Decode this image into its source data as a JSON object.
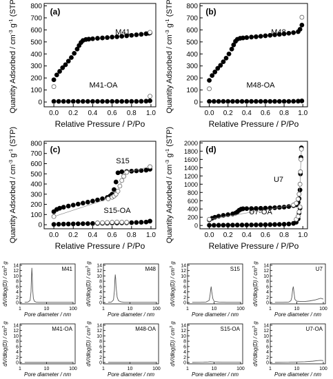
{
  "chart_data": [
    {
      "panel": "(a)",
      "type": "scatter",
      "xlabel": "Relative Pressure / P/Po",
      "ylabel": "Quantity Adsorbed / cm3 g-1 (STP)",
      "xlim": [
        -0.1,
        1.05
      ],
      "ylim": [
        -40,
        820
      ],
      "xticks": [
        0.0,
        0.2,
        0.4,
        0.6,
        0.8,
        1.0
      ],
      "yticks": [
        0,
        100,
        200,
        300,
        400,
        500,
        600,
        700,
        800
      ],
      "series": [
        {
          "name": "M41",
          "style": "filled",
          "x": [
            0.0,
            0.03,
            0.06,
            0.09,
            0.12,
            0.15,
            0.18,
            0.21,
            0.24,
            0.26,
            0.28,
            0.3,
            0.33,
            0.36,
            0.4,
            0.45,
            0.5,
            0.55,
            0.6,
            0.65,
            0.7,
            0.75,
            0.8,
            0.85,
            0.9,
            0.95,
            0.98,
            0.99
          ],
          "y": [
            185,
            225,
            255,
            285,
            310,
            340,
            370,
            405,
            440,
            470,
            495,
            512,
            520,
            523,
            526,
            530,
            533,
            536,
            540,
            543,
            547,
            551,
            555,
            559,
            563,
            568,
            572,
            575
          ]
        },
        {
          "name": "M41 desorption",
          "style": "open",
          "x": [
            0.0,
            0.99
          ],
          "y": [
            128,
            580
          ]
        },
        {
          "name": "M41-OA",
          "style": "filled",
          "x": [
            0.0,
            0.05,
            0.1,
            0.15,
            0.2,
            0.25,
            0.3,
            0.35,
            0.4,
            0.45,
            0.5,
            0.55,
            0.6,
            0.65,
            0.7,
            0.75,
            0.8,
            0.85,
            0.9,
            0.95,
            0.99
          ],
          "y": [
            5,
            5,
            5,
            5,
            5,
            5,
            5,
            5,
            5,
            5,
            5,
            5,
            5,
            5,
            5,
            5,
            5,
            5,
            6,
            7,
            10
          ]
        },
        {
          "name": "M41-OA desorption",
          "style": "open",
          "x": [
            0.99
          ],
          "y": [
            48
          ]
        }
      ],
      "annotations": [
        "M41",
        "M41-OA"
      ]
    },
    {
      "panel": "(b)",
      "type": "scatter",
      "xlabel": "Relative Pressure / P/Po",
      "ylabel": "Quantity Adsorbed / cm3 g-1 (STP)",
      "xlim": [
        -0.1,
        1.05
      ],
      "ylim": [
        -40,
        820
      ],
      "xticks": [
        0.0,
        0.2,
        0.4,
        0.6,
        0.8,
        1.0
      ],
      "yticks": [
        0,
        100,
        200,
        300,
        400,
        500,
        600,
        700,
        800
      ],
      "series": [
        {
          "name": "M48",
          "style": "filled",
          "x": [
            0.0,
            0.03,
            0.06,
            0.09,
            0.12,
            0.15,
            0.18,
            0.21,
            0.24,
            0.26,
            0.28,
            0.3,
            0.33,
            0.36,
            0.4,
            0.45,
            0.5,
            0.55,
            0.6,
            0.65,
            0.7,
            0.75,
            0.8,
            0.85,
            0.9,
            0.95,
            0.97,
            0.99
          ],
          "y": [
            180,
            220,
            250,
            280,
            305,
            335,
            365,
            400,
            440,
            475,
            505,
            522,
            530,
            533,
            536,
            540,
            543,
            547,
            551,
            555,
            559,
            563,
            567,
            572,
            577,
            585,
            605,
            640
          ]
        },
        {
          "name": "M48 desorption",
          "style": "open",
          "x": [
            0.0,
            0.99
          ],
          "y": [
            110,
            705
          ]
        },
        {
          "name": "M48-OA",
          "style": "filled",
          "x": [
            0.0,
            0.05,
            0.1,
            0.15,
            0.2,
            0.25,
            0.3,
            0.35,
            0.4,
            0.45,
            0.5,
            0.55,
            0.6,
            0.65,
            0.7,
            0.75,
            0.8,
            0.85,
            0.9,
            0.95,
            0.99
          ],
          "y": [
            5,
            5,
            5,
            5,
            5,
            5,
            5,
            5,
            5,
            5,
            5,
            5,
            5,
            5,
            5,
            5,
            5,
            5,
            6,
            7,
            9
          ]
        }
      ],
      "annotations": [
        "M48",
        "M48-OA"
      ]
    },
    {
      "panel": "(c)",
      "type": "scatter",
      "xlabel": "Relative Pressure / P/Po",
      "ylabel": "Quantity Adsorbed / cm3 g-1 (STP)",
      "xlim": [
        -0.1,
        1.05
      ],
      "ylim": [
        -40,
        820
      ],
      "xticks": [
        0.0,
        0.2,
        0.4,
        0.6,
        0.8,
        1.0
      ],
      "yticks": [
        0,
        100,
        200,
        300,
        400,
        500,
        600,
        700,
        800
      ],
      "series": [
        {
          "name": "S15",
          "style": "filled",
          "x": [
            0.0,
            0.03,
            0.06,
            0.1,
            0.15,
            0.2,
            0.25,
            0.3,
            0.35,
            0.4,
            0.45,
            0.5,
            0.55,
            0.58,
            0.6,
            0.62,
            0.64,
            0.66,
            0.7,
            0.75,
            0.8,
            0.85,
            0.9,
            0.95,
            0.99
          ],
          "y": [
            128,
            150,
            162,
            172,
            183,
            193,
            203,
            212,
            222,
            232,
            243,
            255,
            268,
            282,
            300,
            345,
            420,
            510,
            520,
            523,
            526,
            529,
            532,
            536,
            545
          ]
        },
        {
          "name": "S15 desorption",
          "style": "open",
          "x": [
            0.0,
            0.56,
            0.6,
            0.62,
            0.64,
            0.66,
            0.68,
            0.7,
            0.72,
            0.75,
            0.99
          ],
          "y": [
            80,
            255,
            270,
            282,
            300,
            330,
            380,
            435,
            475,
            515,
            570
          ]
        },
        {
          "name": "S15-OA",
          "style": "filled",
          "x": [
            0.0,
            0.05,
            0.1,
            0.15,
            0.2,
            0.25,
            0.3,
            0.35,
            0.4,
            0.45,
            0.5,
            0.55,
            0.6,
            0.65,
            0.7,
            0.75,
            0.8,
            0.85,
            0.9,
            0.95,
            0.99
          ],
          "y": [
            3,
            5,
            6,
            7,
            8,
            9,
            10,
            11,
            12,
            13,
            14,
            15,
            16,
            17,
            18,
            19,
            20,
            22,
            24,
            26,
            35
          ]
        },
        {
          "name": "S15-OA desorption",
          "style": "open",
          "x": [
            0.45,
            0.5,
            0.55,
            0.6,
            0.65,
            0.7,
            0.75
          ],
          "y": [
            18,
            20,
            22,
            24,
            26,
            25,
            24
          ]
        }
      ],
      "annotations": [
        "S15",
        "S15-OA"
      ]
    },
    {
      "panel": "(d)",
      "type": "scatter",
      "xlabel": "Relative Pressure / P/Po",
      "ylabel": "Quantity Adsorbed / cm3 g-1 (STP)",
      "xlim": [
        -0.1,
        1.05
      ],
      "ylim": [
        -80,
        2040
      ],
      "xticks": [
        0.0,
        0.2,
        0.4,
        0.6,
        0.8,
        1.0
      ],
      "yticks": [
        0,
        200,
        400,
        600,
        800,
        1000,
        1200,
        1400,
        1600,
        1800,
        2000
      ],
      "series": [
        {
          "name": "U7",
          "style": "filled",
          "x": [
            0.0,
            0.03,
            0.06,
            0.1,
            0.15,
            0.2,
            0.25,
            0.28,
            0.3,
            0.32,
            0.34,
            0.36,
            0.4,
            0.45,
            0.5,
            0.55,
            0.6,
            0.65,
            0.7,
            0.75,
            0.8,
            0.85,
            0.9,
            0.93,
            0.95,
            0.96,
            0.97,
            0.975,
            0.98,
            0.985
          ],
          "y": [
            135,
            175,
            200,
            225,
            245,
            262,
            280,
            300,
            330,
            370,
            395,
            405,
            408,
            410,
            413,
            416,
            420,
            425,
            430,
            437,
            445,
            458,
            480,
            500,
            560,
            650,
            860,
            1250,
            1650,
            1880
          ]
        },
        {
          "name": "U7 desorption",
          "style": "open",
          "x": [
            0.0,
            0.9,
            0.93,
            0.95,
            0.96,
            0.97,
            0.975,
            0.98,
            0.985
          ],
          "y": [
            150,
            495,
            540,
            640,
            760,
            1000,
            1300,
            1600,
            1850
          ]
        },
        {
          "name": "U7-OA",
          "style": "filled",
          "x": [
            0.0,
            0.05,
            0.1,
            0.15,
            0.2,
            0.25,
            0.3,
            0.35,
            0.4,
            0.45,
            0.5,
            0.55,
            0.6,
            0.65,
            0.7,
            0.75,
            0.8,
            0.85,
            0.9,
            0.93,
            0.95,
            0.96,
            0.97
          ],
          "y": [
            5,
            6,
            7,
            8,
            9,
            10,
            11,
            12,
            13,
            14,
            15,
            17,
            19,
            21,
            23,
            26,
            30,
            36,
            50,
            80,
            160,
            300,
            420
          ]
        },
        {
          "name": "U7-OA desorption",
          "style": "open",
          "x": [
            0.93,
            0.95,
            0.96,
            0.97
          ],
          "y": [
            150,
            220,
            330,
            450
          ]
        }
      ],
      "annotations": [
        "U7",
        "U7-OA"
      ]
    },
    {
      "panel": "M41",
      "type": "line",
      "ylabel": "dV/dlog(D) / cm3 g",
      "xlabel": "Pore diameter / nm",
      "xscale": "log",
      "xlim": [
        1,
        120
      ],
      "ylim": [
        -0.5,
        14.5
      ],
      "xticks": [
        1,
        10,
        100
      ],
      "yticks": [
        0,
        2,
        4,
        6,
        8,
        10,
        12,
        14
      ],
      "x": [
        1.5,
        2.0,
        2.4,
        2.6,
        2.7,
        2.8,
        2.9,
        3.0,
        3.2,
        3.5,
        4.0,
        5.0,
        10,
        30,
        100
      ],
      "y": [
        0.1,
        0.2,
        0.8,
        4.0,
        9.5,
        13.0,
        10.0,
        5.0,
        1.5,
        0.5,
        0.2,
        0.1,
        0.1,
        0.1,
        0.1
      ]
    },
    {
      "panel": "M48",
      "type": "line",
      "ylabel": "dV/dlog(D) / cm3 g",
      "xlabel": "Pore diameter / nm",
      "xscale": "log",
      "xlim": [
        1,
        120
      ],
      "ylim": [
        -0.5,
        14.5
      ],
      "xticks": [
        1,
        10,
        100
      ],
      "yticks": [
        0,
        2,
        4,
        6,
        8,
        10,
        12,
        14
      ],
      "x": [
        1.5,
        2.0,
        2.4,
        2.6,
        2.7,
        2.8,
        2.9,
        3.0,
        3.3,
        3.7,
        4.5,
        6.0,
        10,
        30,
        100
      ],
      "y": [
        0.1,
        0.2,
        1.0,
        4.5,
        8.5,
        10.5,
        9.0,
        6.0,
        2.0,
        0.7,
        0.3,
        0.1,
        0.1,
        0.1,
        0.1
      ]
    },
    {
      "panel": "S15",
      "type": "line",
      "ylabel": "dV/dlog(D) / cm3 g",
      "xlabel": "Pore diameter / nm",
      "xscale": "log",
      "xlim": [
        1,
        120
      ],
      "ylim": [
        -0.5,
        14.5
      ],
      "xticks": [
        1,
        10,
        100
      ],
      "yticks": [
        0,
        2,
        4,
        6,
        8,
        10,
        12,
        14
      ],
      "x": [
        1.5,
        3.0,
        5.0,
        6.5,
        7.0,
        7.5,
        7.8,
        8.2,
        9.0,
        10,
        15,
        30,
        100
      ],
      "y": [
        0.1,
        0.1,
        0.2,
        0.8,
        2.5,
        5.0,
        6.0,
        4.0,
        1.5,
        0.5,
        0.2,
        0.1,
        0.1
      ]
    },
    {
      "panel": "U7",
      "type": "line",
      "ylabel": "dV/dlog(D) / cm3 g",
      "xlabel": "Pore diameter / nm",
      "xscale": "log",
      "xlim": [
        1,
        120
      ],
      "ylim": [
        -0.5,
        14.5
      ],
      "xticks": [
        1,
        10,
        100
      ],
      "yticks": [
        0,
        2,
        4,
        6,
        8,
        10,
        12,
        14
      ],
      "x": [
        1.5,
        3.0,
        5.0,
        6.0,
        6.5,
        7.0,
        7.4,
        7.8,
        8.5,
        10,
        15,
        20,
        30,
        50,
        80,
        100
      ],
      "y": [
        0.1,
        0.1,
        0.2,
        0.7,
        2.0,
        5.0,
        6.0,
        4.0,
        1.2,
        0.5,
        0.4,
        0.4,
        0.6,
        1.0,
        1.6,
        1.3
      ]
    },
    {
      "panel": "M41-OA",
      "type": "line",
      "ylabel": "dV/dlog(D) / cm3 g",
      "xlabel": "Pore diameter / nm",
      "xscale": "log",
      "xlim": [
        1,
        120
      ],
      "ylim": [
        -0.5,
        14.5
      ],
      "xticks": [
        1,
        10,
        100
      ],
      "yticks": [
        0,
        2,
        4,
        6,
        8,
        10,
        12,
        14
      ],
      "x": [
        1.5,
        5,
        10,
        30,
        100
      ],
      "y": [
        0.05,
        0.05,
        0.05,
        0.05,
        0.05
      ]
    },
    {
      "panel": "M48-OA",
      "type": "line",
      "ylabel": "dV/dlog(D) / cm3 g",
      "xlabel": "Pore diameter / nm",
      "xscale": "log",
      "xlim": [
        1,
        120
      ],
      "ylim": [
        -0.5,
        14.5
      ],
      "xticks": [
        1,
        10,
        100
      ],
      "yticks": [
        0,
        2,
        4,
        6,
        8,
        10,
        12,
        14
      ],
      "x": [
        1.5,
        5,
        10,
        30,
        100
      ],
      "y": [
        0.05,
        0.05,
        0.05,
        0.05,
        0.05
      ]
    },
    {
      "panel": "S15-OA",
      "type": "line",
      "ylabel": "dV/dlog(D) / cm3 g",
      "xlabel": "Pore diameter / nm",
      "xscale": "log",
      "xlim": [
        1,
        120
      ],
      "ylim": [
        -0.5,
        14.5
      ],
      "xticks": [
        1,
        10,
        100
      ],
      "yticks": [
        0,
        2,
        4,
        6,
        8,
        10,
        12,
        14
      ],
      "x": [
        1.5,
        4,
        6,
        7,
        8,
        10,
        20,
        50,
        100
      ],
      "y": [
        0.05,
        0.1,
        0.2,
        0.3,
        0.25,
        0.15,
        0.1,
        0.1,
        0.1
      ]
    },
    {
      "panel": "U7-OA",
      "type": "line",
      "ylabel": "dV/dlog(D) / cm3 g",
      "xlabel": "Pore diameter / nm",
      "xscale": "log",
      "xlim": [
        1,
        120
      ],
      "ylim": [
        -0.5,
        14.5
      ],
      "xticks": [
        1,
        10,
        100
      ],
      "yticks": [
        0,
        2,
        4,
        6,
        8,
        10,
        12,
        14
      ],
      "x": [
        1.5,
        5,
        10,
        20,
        40,
        60,
        80,
        100
      ],
      "y": [
        0.05,
        0.1,
        0.2,
        0.3,
        0.5,
        0.7,
        0.8,
        0.7
      ]
    }
  ]
}
